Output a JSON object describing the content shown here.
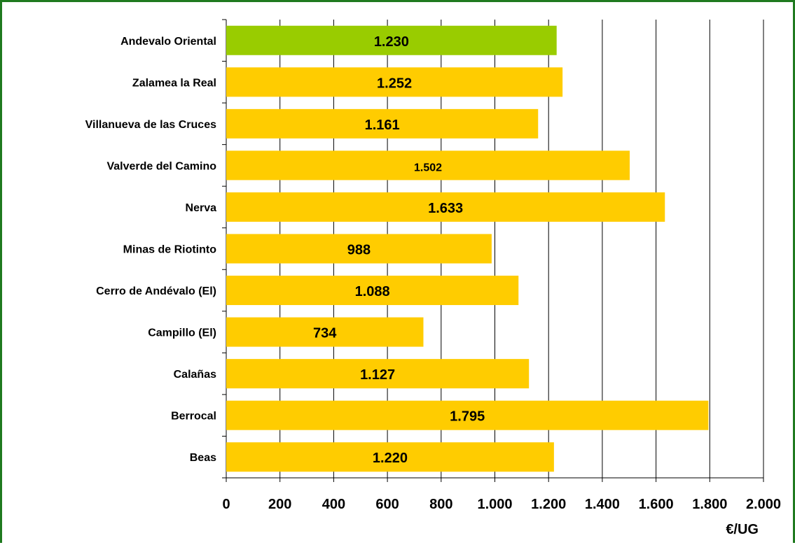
{
  "chart_data": {
    "type": "bar",
    "orientation": "horizontal",
    "title": "",
    "xlabel": "€/UG",
    "ylabel": "",
    "xlim": [
      0,
      2000
    ],
    "x_ticks": [
      0,
      200,
      400,
      600,
      800,
      1000,
      1200,
      1400,
      1600,
      1800,
      2000
    ],
    "x_tick_labels": [
      "0",
      "200",
      "400",
      "600",
      "800",
      "1.000",
      "1.200",
      "1.400",
      "1.600",
      "1.800",
      "2.000"
    ],
    "grid": "vertical",
    "legend": "none",
    "categories": [
      "Andevalo Oriental",
      "Zalamea la Real",
      "Villanueva de las Cruces",
      "Valverde del Camino",
      "Nerva",
      "Minas de Riotinto",
      "Cerro de Andévalo (El)",
      "Campillo (El)",
      "Calañas",
      "Berrocal",
      "Beas"
    ],
    "values": [
      1230,
      1252,
      1161,
      1502,
      1633,
      988,
      1088,
      734,
      1127,
      1795,
      1220
    ],
    "value_labels": [
      "1.230",
      "1.252",
      "1.161",
      "1.502",
      "1.633",
      "988",
      "1.088",
      "734",
      "1.127",
      "1.795",
      "1.220"
    ],
    "highlight_index": 0,
    "colors": {
      "highlight": "#99cc00",
      "bar": "#ffcc00",
      "grid": "#000000",
      "frame": "#1f7a1f"
    }
  }
}
